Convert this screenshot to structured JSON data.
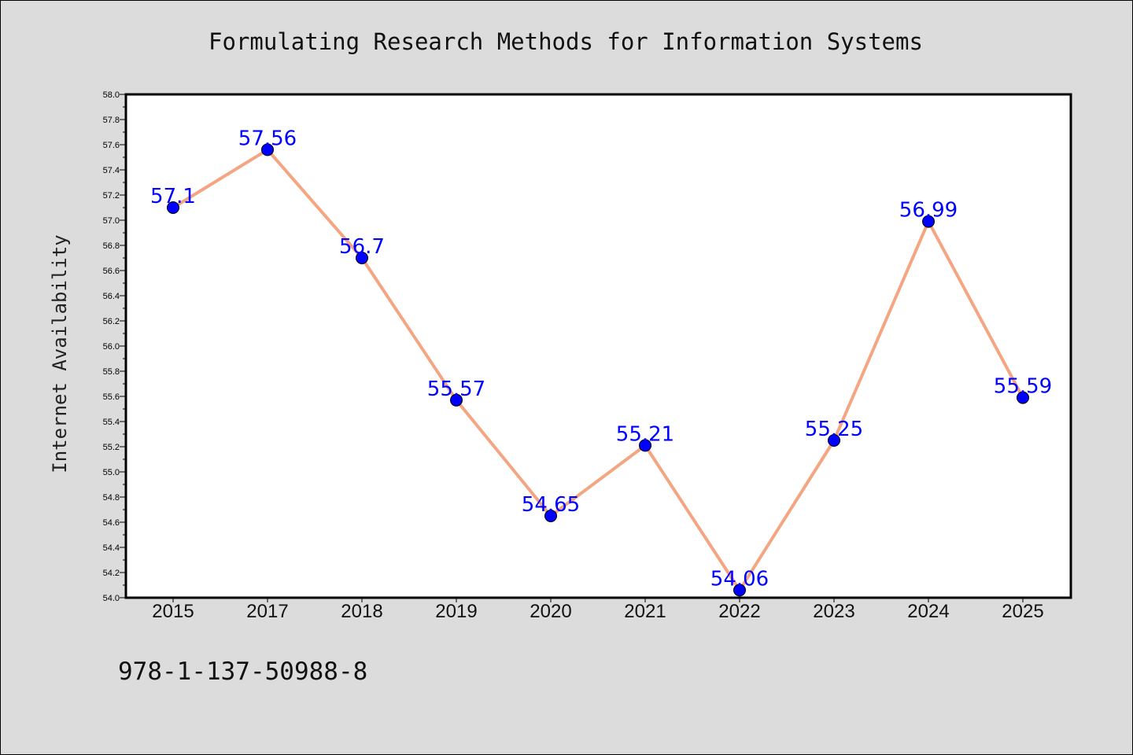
{
  "chart_data": {
    "type": "line",
    "title": "Formulating Research Methods for Information Systems",
    "xlabel": "",
    "ylabel": "Internet Availability",
    "categories": [
      "2015",
      "2017",
      "2018",
      "2019",
      "2020",
      "2021",
      "2022",
      "2023",
      "2024",
      "2025"
    ],
    "series": [
      {
        "values": [
          57.1,
          57.56,
          56.7,
          55.57,
          54.65,
          55.21,
          54.06,
          55.25,
          56.99,
          55.59
        ]
      }
    ],
    "data_labels": [
      "57.1",
      "57.56",
      "56.7",
      "55.57",
      "54.65",
      "55.21",
      "54.06",
      "55.25",
      "56.99",
      "55.59"
    ],
    "ylim": [
      54.0,
      58.0
    ],
    "y_ticks": [
      "54.0",
      "54.2",
      "54.4",
      "54.6",
      "54.8",
      "55.0",
      "55.2",
      "55.4",
      "55.6",
      "55.8",
      "56.0",
      "56.2",
      "56.4",
      "56.6",
      "56.8",
      "57.0",
      "57.2",
      "57.4",
      "57.6",
      "57.8",
      "58.0"
    ],
    "grid": false,
    "colors": {
      "line": "#f4a582",
      "marker": "#0000ff",
      "label": "#0000ff",
      "background": "#dcdcdc",
      "plot_background": "#ffffff"
    }
  },
  "footer_text": "978-1-137-50988-8"
}
